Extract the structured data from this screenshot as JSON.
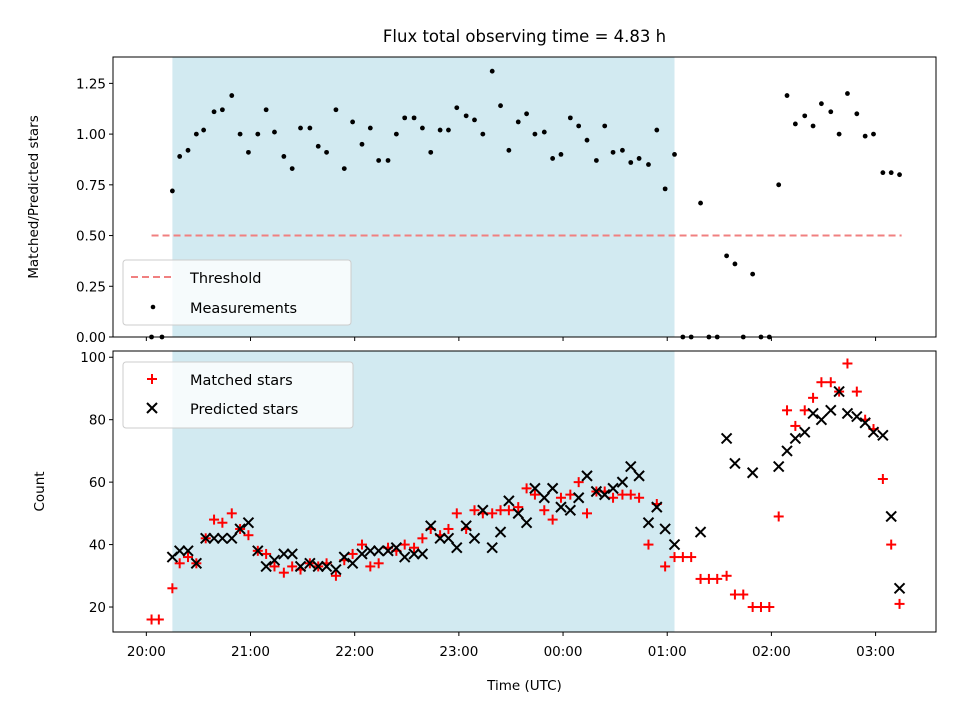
{
  "chart_data": {
    "title": "Flux total observing time = 4.83 h",
    "xlabel": "Time (UTC)",
    "x_unit": "hours UTC (20.0 = 20:00, 24.0 = 00:00 next day)",
    "x_tick_labels": [
      "20:00",
      "21:00",
      "22:00",
      "23:00",
      "00:00",
      "01:00",
      "02:00",
      "03:00"
    ],
    "xlim": [
      19.68,
      27.58
    ],
    "shaded_interval": {
      "from": 20.25,
      "to": 25.07,
      "color": "#add8e6"
    },
    "panels": [
      {
        "type": "scatter",
        "ylabel": "Matched/Predicted stars",
        "ylim": [
          0,
          1.38
        ],
        "y_ticks": [
          "0.00",
          "0.25",
          "0.50",
          "0.75",
          "1.00",
          "1.25"
        ],
        "legend": {
          "placement": "lower-left",
          "entries": [
            "Threshold",
            "Measurements"
          ]
        },
        "threshold": {
          "name": "Threshold",
          "value": 0.5,
          "x_from": 20.05,
          "x_to": 27.25,
          "color": "#f08080"
        },
        "series": [
          {
            "name": "Measurements",
            "color": "#000000",
            "x": [
              20.05,
              20.15,
              20.25,
              20.32,
              20.4,
              20.48,
              20.55,
              20.65,
              20.73,
              20.82,
              20.9,
              20.98,
              21.07,
              21.15,
              21.23,
              21.32,
              21.4,
              21.48,
              21.57,
              21.65,
              21.73,
              21.82,
              21.9,
              21.98,
              22.07,
              22.15,
              22.23,
              22.32,
              22.4,
              22.48,
              22.57,
              22.65,
              22.73,
              22.82,
              22.9,
              22.98,
              23.07,
              23.15,
              23.23,
              23.32,
              23.4,
              23.48,
              23.57,
              23.65,
              23.73,
              23.82,
              23.9,
              23.98,
              24.07,
              24.15,
              24.23,
              24.32,
              24.4,
              24.48,
              24.57,
              24.65,
              24.73,
              24.82,
              24.9,
              24.98,
              25.07,
              25.15,
              25.23,
              25.32,
              25.4,
              25.48,
              25.57,
              25.65,
              25.73,
              25.82,
              25.9,
              25.98,
              26.07,
              26.15,
              26.23,
              26.32,
              26.4,
              26.48,
              26.57,
              26.65,
              26.73,
              26.82,
              26.9,
              26.98,
              27.07,
              27.15,
              27.23
            ],
            "y": [
              0,
              0,
              0.72,
              0.89,
              0.92,
              1.0,
              1.02,
              1.11,
              1.12,
              1.19,
              1.0,
              0.91,
              1.0,
              1.12,
              1.01,
              0.89,
              0.83,
              1.03,
              1.03,
              0.94,
              0.91,
              1.12,
              0.83,
              1.06,
              0.95,
              1.03,
              0.87,
              0.87,
              1.0,
              1.08,
              1.08,
              1.03,
              0.91,
              1.02,
              1.02,
              1.13,
              1.09,
              1.07,
              1.0,
              1.31,
              1.14,
              0.92,
              1.06,
              1.1,
              1.0,
              1.01,
              0.88,
              0.9,
              1.08,
              1.04,
              0.97,
              0.87,
              1.04,
              0.91,
              0.92,
              0.86,
              0.88,
              0.85,
              1.02,
              0.73,
              0.9,
              0,
              0,
              0.66,
              0,
              0,
              0.4,
              0.36,
              0,
              0.31,
              0,
              0,
              0.75,
              1.19,
              1.05,
              1.09,
              1.04,
              1.15,
              1.11,
              1.0,
              1.2,
              1.1,
              0.99,
              1.0,
              0.81,
              0.81,
              0.8
            ]
          }
        ]
      },
      {
        "type": "scatter",
        "ylabel": "Count",
        "ylim": [
          12,
          102
        ],
        "y_ticks": [
          "20",
          "40",
          "60",
          "80",
          "100"
        ],
        "legend": {
          "placement": "upper-left",
          "entries": [
            "Matched stars",
            "Predicted stars"
          ]
        },
        "series": [
          {
            "name": "Matched stars",
            "marker": "plus",
            "color": "#ff0000",
            "x": [
              20.05,
              20.12,
              20.25,
              20.32,
              20.4,
              20.48,
              20.57,
              20.65,
              20.73,
              20.82,
              20.9,
              20.98,
              21.07,
              21.15,
              21.23,
              21.32,
              21.4,
              21.48,
              21.57,
              21.65,
              21.73,
              21.82,
              21.9,
              21.98,
              22.07,
              22.15,
              22.23,
              22.32,
              22.4,
              22.48,
              22.57,
              22.65,
              22.73,
              22.82,
              22.9,
              22.98,
              23.07,
              23.15,
              23.23,
              23.32,
              23.4,
              23.48,
              23.57,
              23.65,
              23.73,
              23.82,
              23.9,
              23.98,
              24.07,
              24.15,
              24.23,
              24.32,
              24.4,
              24.48,
              24.57,
              24.65,
              24.73,
              24.82,
              24.9,
              24.98,
              25.07,
              25.15,
              25.23,
              25.32,
              25.4,
              25.48,
              25.57,
              25.65,
              25.73,
              25.82,
              25.9,
              25.98,
              26.07,
              26.15,
              26.23,
              26.32,
              26.4,
              26.48,
              26.57,
              26.65,
              26.73,
              26.82,
              26.9,
              26.98,
              27.07,
              27.15,
              27.23
            ],
            "y": [
              16,
              16,
              26,
              34,
              36,
              34,
              42,
              48,
              47,
              50,
              45,
              43,
              38,
              37,
              33,
              31,
              33,
              32,
              34,
              33,
              34,
              30,
              35,
              37,
              40,
              33,
              34,
              39,
              38,
              40,
              39,
              42,
              45,
              43,
              45,
              50,
              45,
              51,
              50,
              50,
              51,
              51,
              52,
              58,
              56,
              51,
              48,
              55,
              56,
              60,
              50,
              57,
              57,
              55,
              56,
              56,
              55,
              40,
              53,
              33,
              36,
              36,
              36,
              29,
              29,
              29,
              30,
              24,
              24,
              20,
              20,
              20,
              49,
              83,
              78,
              83,
              87,
              92,
              92,
              89,
              98,
              89,
              80,
              77,
              61,
              40,
              21
            ]
          },
          {
            "name": "Predicted stars",
            "marker": "x",
            "color": "#000000",
            "x": [
              20.25,
              20.32,
              20.4,
              20.48,
              20.57,
              20.65,
              20.73,
              20.82,
              20.9,
              20.98,
              21.07,
              21.15,
              21.23,
              21.32,
              21.4,
              21.48,
              21.57,
              21.65,
              21.73,
              21.82,
              21.9,
              21.98,
              22.07,
              22.15,
              22.23,
              22.32,
              22.4,
              22.48,
              22.57,
              22.65,
              22.73,
              22.82,
              22.9,
              22.98,
              23.07,
              23.15,
              23.23,
              23.32,
              23.4,
              23.48,
              23.57,
              23.65,
              23.73,
              23.82,
              23.9,
              23.98,
              24.07,
              24.15,
              24.23,
              24.32,
              24.4,
              24.48,
              24.57,
              24.65,
              24.73,
              24.82,
              24.9,
              24.98,
              25.07,
              25.32,
              25.57,
              25.65,
              25.82,
              26.07,
              26.15,
              26.23,
              26.32,
              26.4,
              26.48,
              26.57,
              26.65,
              26.73,
              26.82,
              26.9,
              26.98,
              27.07,
              27.15,
              27.23
            ],
            "y": [
              36,
              38,
              38,
              34,
              42,
              42,
              42,
              42,
              45,
              47,
              38,
              33,
              35,
              37,
              37,
              33,
              34,
              33,
              33,
              32,
              36,
              34,
              37,
              38,
              38,
              38,
              39,
              36,
              37,
              37,
              46,
              42,
              42,
              39,
              46,
              42,
              51,
              39,
              44,
              54,
              50,
              47,
              58,
              55,
              58,
              52,
              51,
              55,
              62,
              57,
              56,
              58,
              60,
              65,
              62,
              47,
              52,
              45,
              40,
              44,
              74,
              66,
              63,
              65,
              70,
              74,
              76,
              82,
              80,
              83,
              89,
              82,
              81,
              79,
              76,
              75,
              49,
              26
            ]
          }
        ]
      }
    ]
  }
}
